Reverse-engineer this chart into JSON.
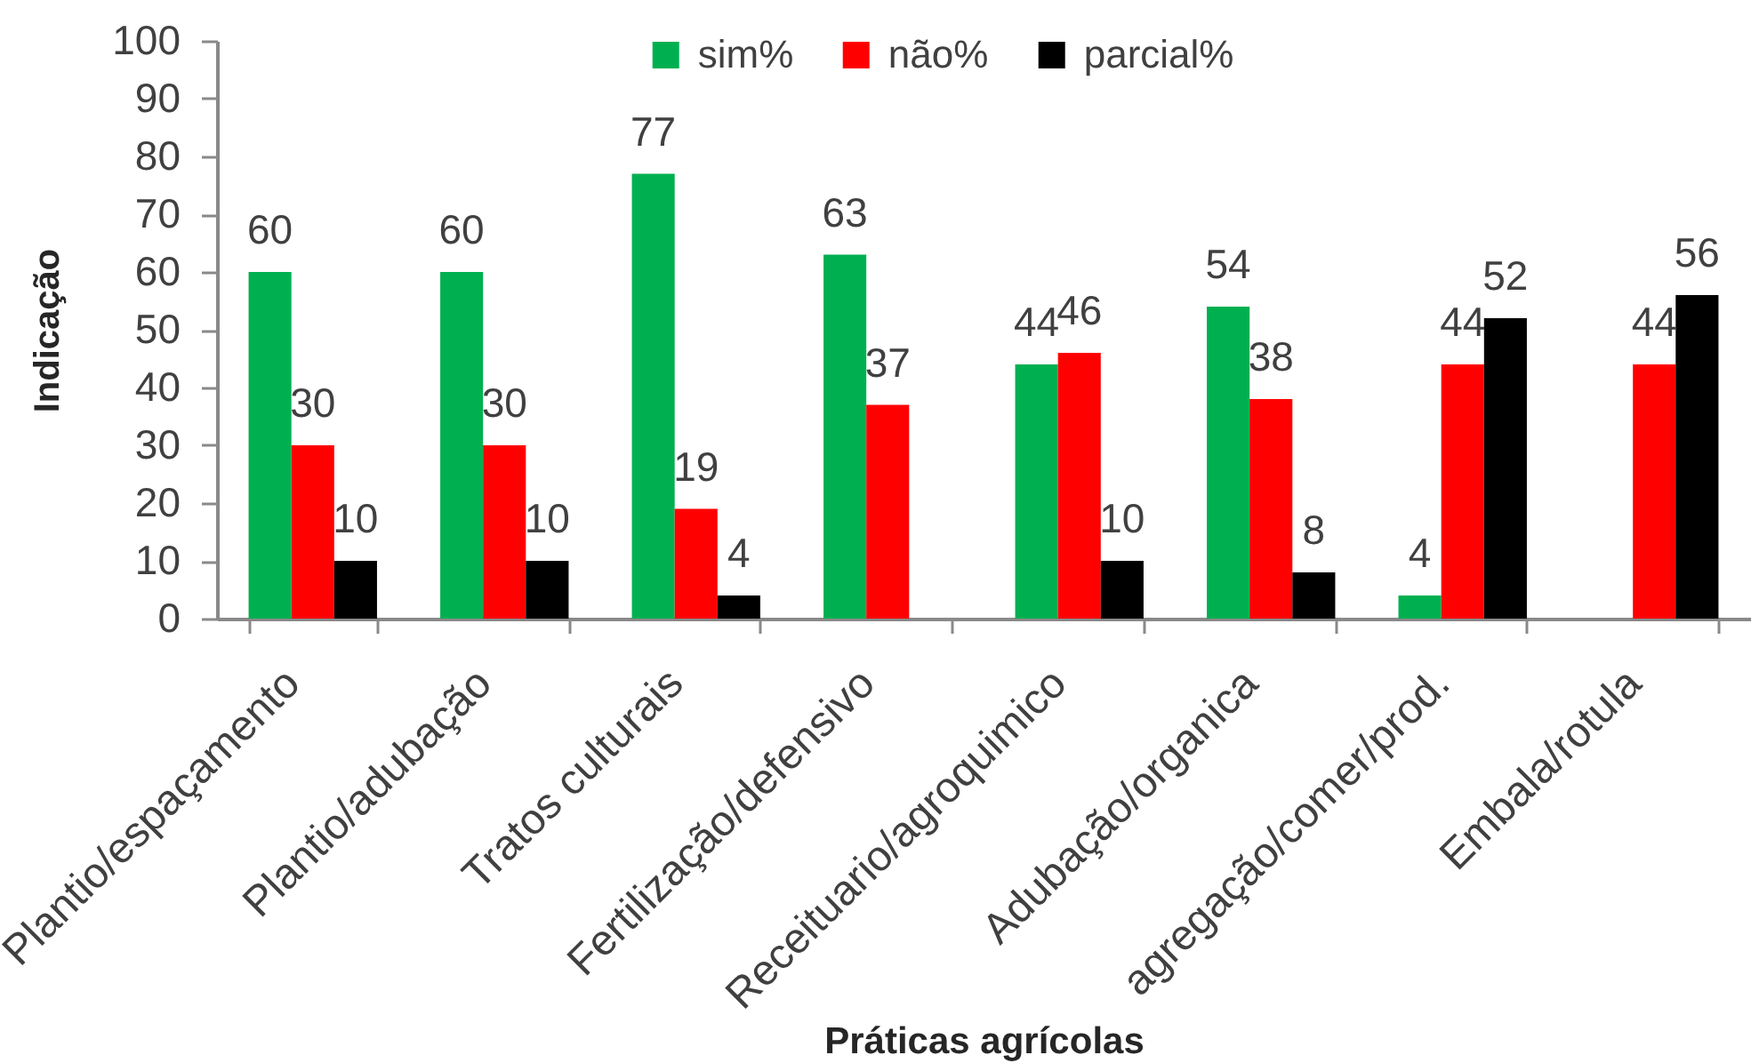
{
  "chart_data": {
    "type": "bar",
    "xlabel": "Práticas agrícolas",
    "ylabel": "Indicação",
    "categories": [
      "Plantio/espaçamento",
      "Plantio/adubação",
      "Tratos culturais",
      "Fertilização/defensivo",
      "Receituario/agroquimico",
      "Adubação/organica",
      "agregação/comer/prod.",
      "Embala/rotula"
    ],
    "series": [
      {
        "name": "sim%",
        "color": "#00b050",
        "values": [
          60,
          60,
          77,
          63,
          44,
          54,
          4,
          null
        ]
      },
      {
        "name": "não%",
        "color": "#ff0000",
        "values": [
          30,
          30,
          19,
          37,
          46,
          38,
          44,
          44
        ]
      },
      {
        "name": "parcial%",
        "color": "#000000",
        "values": [
          10,
          10,
          4,
          null,
          10,
          8,
          52,
          56
        ]
      }
    ],
    "ylim": [
      0,
      100
    ],
    "yticks": [
      0,
      10,
      20,
      30,
      40,
      50,
      60,
      70,
      80,
      90,
      100
    ],
    "data_labels": true,
    "legend": "top"
  }
}
